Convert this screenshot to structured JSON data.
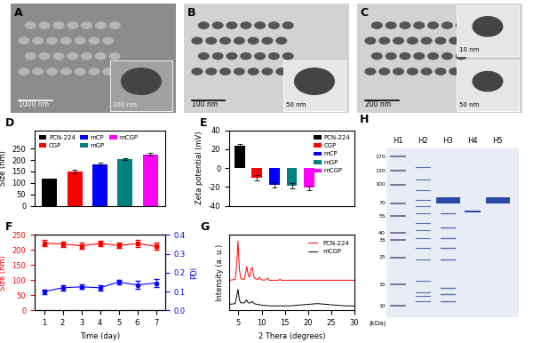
{
  "chart_data": [
    {
      "panel": "D",
      "type": "bar",
      "categories": [
        "PCN-224",
        "CGP",
        "mCP",
        "mGP",
        "mCGP"
      ],
      "values": [
        117,
        150,
        183,
        205,
        225
      ],
      "errors": [
        3,
        8,
        5,
        3,
        5
      ],
      "colors": [
        "#000000",
        "#ff0000",
        "#0000ff",
        "#008080",
        "#ff00ff"
      ],
      "y_label": "Size (nm)",
      "ylim": [
        0,
        330
      ],
      "yticks": [
        0,
        50,
        100,
        150,
        200,
        250
      ],
      "legend": "upper left",
      "tick_labels": "y"
    },
    {
      "panel": "E",
      "type": "bar",
      "categories": [
        "PCN-224",
        "CGP",
        "mCP",
        "mGP",
        "mCGP"
      ],
      "values": [
        24,
        -10,
        -18,
        -19,
        -21
      ],
      "errors": [
        2,
        3,
        3,
        3,
        2
      ],
      "colors": [
        "#000000",
        "#ff0000",
        "#0000ff",
        "#008080",
        "#ff00ff"
      ],
      "y_label": "Zeta potential (mV)",
      "ylim": [
        -40,
        40
      ],
      "yticks": [
        -40,
        -20,
        0,
        20,
        40
      ],
      "legend": "upper right",
      "tick_labels": "y"
    },
    {
      "panel": "F",
      "type": "line",
      "x": [
        1,
        2,
        3,
        4,
        5,
        6,
        7
      ],
      "x_label": "Time (day)",
      "xlim": [
        0.5,
        7.5
      ],
      "xticks": [
        1,
        2,
        3,
        4,
        5,
        6,
        7
      ],
      "ylim": [
        0,
        250
      ],
      "yticks": [
        0,
        50,
        100,
        150,
        200,
        250
      ],
      "y2lim": [
        0,
        0.4
      ],
      "y2ticks": [
        {
          "value": 0,
          "label": "0.0"
        },
        0.1,
        0.2,
        0.3,
        0.4
      ],
      "series": [
        {
          "name": "Size (nm)",
          "color": "#ff0000",
          "marker": "square",
          "values": [
            223,
            220,
            214,
            222,
            215,
            221,
            213
          ],
          "errors": [
            10,
            9,
            11,
            10,
            9,
            12,
            11
          ]
        },
        {
          "name": "PDI",
          "axis": "y2",
          "color": "#0000ff",
          "marker": "circle",
          "values": [
            0.1,
            0.12,
            0.125,
            0.12,
            0.15,
            0.135,
            0.145
          ],
          "errors": [
            0.012,
            0.015,
            0.012,
            0.015,
            0.012,
            0.02,
            0.02
          ]
        }
      ]
    },
    {
      "panel": "G",
      "type": "line",
      "x_label": "2 Thera (degrees)",
      "y_label": "Intensity (a. u.)",
      "xlim": [
        3,
        30
      ],
      "xticks": [
        5,
        10,
        15,
        20,
        25,
        30
      ],
      "ylim": [
        0,
        100
      ],
      "tick_labels": "x",
      "legend": "upper right",
      "series": [
        {
          "name": "PCN-224",
          "color": "#ff0000",
          "x": [
            3,
            4.3,
            4.6,
            4.9,
            5.2,
            5.5,
            6.2,
            6.5,
            6.8,
            7.1,
            7.4,
            7.7,
            8.0,
            8.3,
            8.6,
            9.2,
            9.5,
            9.8,
            10.5,
            11.0,
            11.3,
            11.6,
            12.5,
            13.5,
            14.0,
            14.3,
            15,
            17,
            20,
            23,
            26,
            30
          ],
          "values": [
            40,
            41,
            60,
            92,
            55,
            42,
            41,
            48,
            58,
            47,
            44,
            55,
            57,
            45,
            42,
            41,
            44,
            41,
            40,
            41,
            43,
            40,
            40,
            40,
            41,
            40,
            40,
            40,
            40,
            40,
            40,
            40
          ]
        },
        {
          "name": "mCGP",
          "color": "#000000",
          "x": [
            3,
            4.3,
            4.6,
            4.9,
            5.2,
            5.5,
            6.3,
            6.7,
            7.1,
            7.6,
            8.0,
            8.4,
            9,
            10,
            12,
            14,
            16,
            18,
            20,
            22,
            24,
            26,
            28,
            30
          ],
          "values": [
            8,
            9,
            18,
            28,
            14,
            10,
            10,
            14,
            10,
            10,
            12,
            9,
            8,
            7,
            6,
            6,
            6,
            7,
            8,
            9,
            8,
            7,
            6,
            6
          ]
        }
      ]
    }
  ],
  "images": [
    {
      "panel": "A",
      "scale_bars": [
        "1000 nm",
        "200 nm"
      ]
    },
    {
      "panel": "B",
      "scale_bars": [
        "100 nm",
        "50 nm"
      ]
    },
    {
      "panel": "C",
      "scale_bars": [
        "200 nm",
        "10 nm",
        "50 nm"
      ]
    }
  ],
  "gel": {
    "panel": "H",
    "lanes": [
      "H1",
      "H2",
      "H3",
      "H4",
      "H5"
    ],
    "markers": [
      170,
      130,
      100,
      70,
      55,
      40,
      35,
      25,
      15,
      10
    ],
    "unit": "(kDa)"
  }
}
